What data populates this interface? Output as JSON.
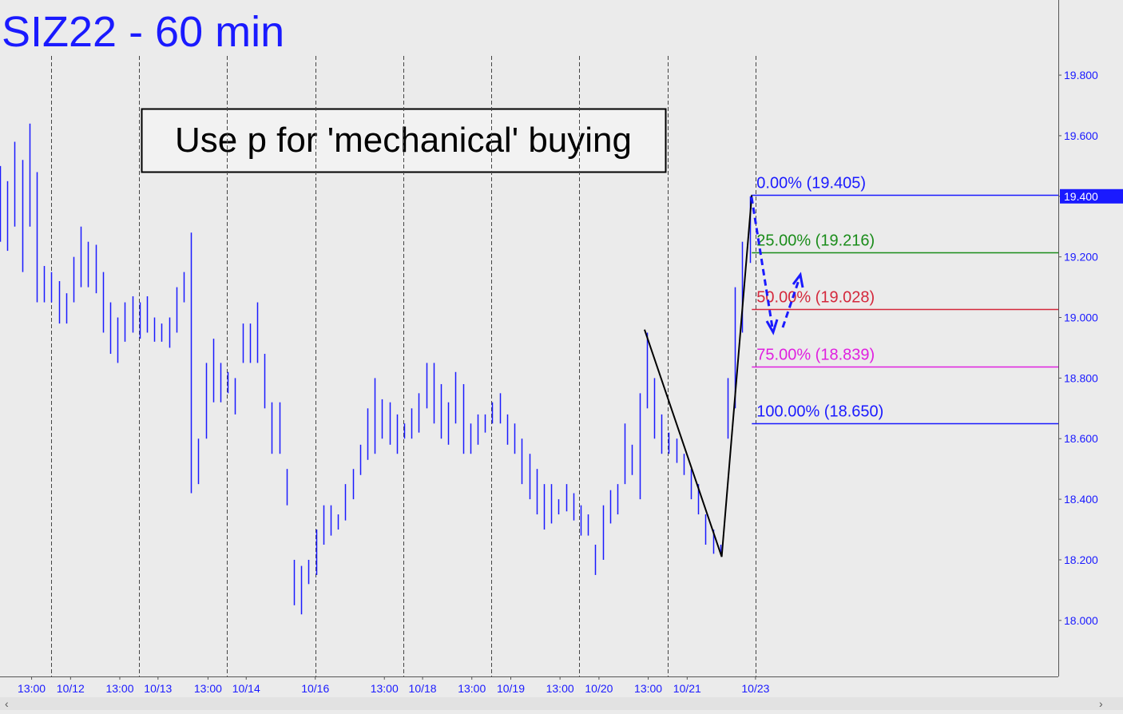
{
  "chart_data": {
    "type": "ohlc",
    "title": "SIZ22 - 60 min",
    "annotation": "Use p for 'mechanical' buying",
    "color": "#1a1aff",
    "xlim": [
      0,
      144
    ],
    "ylim": [
      17.815,
      20.048
    ],
    "yticks": [
      {
        "value": 18.0,
        "label": "18.000"
      },
      {
        "value": 18.2,
        "label": "18.200"
      },
      {
        "value": 18.4,
        "label": "18.400"
      },
      {
        "value": 18.6,
        "label": "18.600"
      },
      {
        "value": 18.8,
        "label": "18.800"
      },
      {
        "value": 19.0,
        "label": "19.000"
      },
      {
        "value": 19.2,
        "label": "19.200"
      },
      {
        "value": 19.4,
        "label": "19.400"
      },
      {
        "value": 19.6,
        "label": "19.600"
      },
      {
        "value": 19.8,
        "label": "19.800"
      }
    ],
    "xticks": [
      {
        "value": 4.3,
        "label": "13:00"
      },
      {
        "value": 9.6,
        "label": "10/12"
      },
      {
        "value": 16.3,
        "label": "13:00"
      },
      {
        "value": 21.5,
        "label": "10/13"
      },
      {
        "value": 28.3,
        "label": "13:00"
      },
      {
        "value": 33.5,
        "label": "10/14"
      },
      {
        "value": 42.9,
        "label": "10/16"
      },
      {
        "value": 52.3,
        "label": "13:00"
      },
      {
        "value": 57.5,
        "label": "10/18"
      },
      {
        "value": 64.2,
        "label": "13:00"
      },
      {
        "value": 69.5,
        "label": "10/19"
      },
      {
        "value": 76.2,
        "label": "13:00"
      },
      {
        "value": 81.5,
        "label": "10/20"
      },
      {
        "value": 88.2,
        "label": "13:00"
      },
      {
        "value": 93.5,
        "label": "10/21"
      },
      {
        "value": 102.8,
        "label": "10/23"
      }
    ],
    "session_lines": [
      7.0,
      18.9,
      30.9,
      42.9,
      54.9,
      66.8,
      78.8,
      90.9,
      102.8
    ],
    "high": [
      19.5,
      19.45,
      19.58,
      19.52,
      19.64,
      19.48,
      19.17,
      19.15,
      19.12,
      19.08,
      19.2,
      19.3,
      19.25,
      19.24,
      19.15,
      19.05,
      19.0,
      19.05,
      19.07,
      19.05,
      19.07,
      19.0,
      18.98,
      19.0,
      19.1,
      19.15,
      19.28,
      18.6,
      18.85,
      18.93,
      18.85,
      18.82,
      18.8,
      18.98,
      18.98,
      19.05,
      18.88,
      18.72,
      18.72,
      18.5,
      18.2,
      18.18,
      18.2,
      18.3,
      18.38,
      18.38,
      18.35,
      18.45,
      18.5,
      18.58,
      18.7,
      18.8,
      18.73,
      18.72,
      18.68,
      18.65,
      18.7,
      18.75,
      18.85,
      18.85,
      18.78,
      18.72,
      18.82,
      18.78,
      18.65,
      18.68,
      18.68,
      18.72,
      18.75,
      18.68,
      18.65,
      18.6,
      18.55,
      18.5,
      18.45,
      18.45,
      18.4,
      18.45,
      18.42,
      18.38,
      18.35,
      18.25,
      18.38,
      18.43,
      18.45,
      18.65,
      18.58,
      18.75,
      18.95,
      18.8,
      18.68,
      18.62,
      18.6,
      18.55,
      18.5,
      18.45,
      18.35,
      18.3,
      18.25,
      18.8,
      19.1,
      19.25,
      19.4
    ],
    "low": [
      19.25,
      19.22,
      19.3,
      19.15,
      19.3,
      19.05,
      19.05,
      19.05,
      18.98,
      18.98,
      19.05,
      19.1,
      19.1,
      19.08,
      18.95,
      18.88,
      18.85,
      18.92,
      18.95,
      18.93,
      18.95,
      18.92,
      18.92,
      18.9,
      18.95,
      19.05,
      18.42,
      18.45,
      18.6,
      18.72,
      18.72,
      18.75,
      18.68,
      18.85,
      18.85,
      18.85,
      18.7,
      18.55,
      18.55,
      18.38,
      18.05,
      18.02,
      18.12,
      18.15,
      18.25,
      18.28,
      18.3,
      18.33,
      18.4,
      18.48,
      18.53,
      18.55,
      18.6,
      18.58,
      18.55,
      18.6,
      18.6,
      18.62,
      18.7,
      18.65,
      18.6,
      18.58,
      18.65,
      18.55,
      18.55,
      18.58,
      18.62,
      18.65,
      18.65,
      18.58,
      18.55,
      18.45,
      18.4,
      18.35,
      18.3,
      18.32,
      18.35,
      18.36,
      18.33,
      18.28,
      18.28,
      18.15,
      18.2,
      18.32,
      18.35,
      18.45,
      18.48,
      18.4,
      18.7,
      18.6,
      18.55,
      18.55,
      18.52,
      18.48,
      18.4,
      18.35,
      18.25,
      18.22,
      18.22,
      18.6,
      18.7,
      18.95,
      19.18
    ],
    "fib_levels": [
      {
        "label": "0.00% (19.405)",
        "value": 19.405,
        "color": "#1a1aff"
      },
      {
        "label": "25.00% (19.216)",
        "value": 19.216,
        "color": "#1a8c1a"
      },
      {
        "label": "50.00% (19.028)",
        "value": 19.028,
        "color": "#d4283c"
      },
      {
        "label": "75.00% (18.839)",
        "value": 18.839,
        "color": "#e020e0"
      },
      {
        "label": "100.00% (18.650)",
        "value": 18.65,
        "color": "#1a1aff"
      }
    ],
    "pattern": {
      "x": [
        87.7,
        98.2,
        102.3
      ],
      "values": [
        18.96,
        18.21,
        19.405
      ]
    },
    "last_price": {
      "value": 19.4,
      "label": "19.400"
    }
  }
}
